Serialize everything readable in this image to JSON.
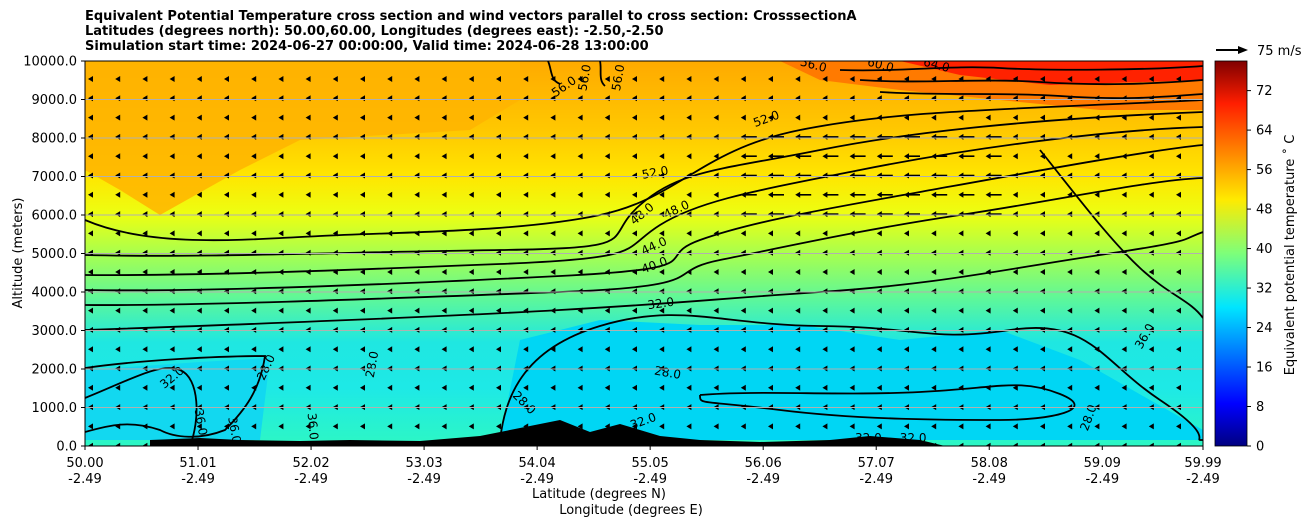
{
  "chart_data": {
    "type": "heatmap",
    "title_lines": [
      "Equivalent Potential Temperature cross section and wind vectors parallel to cross section: CrosssectionA",
      "Latitudes (degrees north): 50.00,60.00, Longitudes (degrees east): -2.50,-2.50",
      "Simulation start time: 2024-06-27 00:00:00, Valid time: 2024-06-28 13:00:00"
    ],
    "ylabel": "Altitude (meters)",
    "xlabel": "Latitude (degrees N)",
    "xlabel2": "Longitude (degrees E)",
    "ylim": [
      0,
      10000
    ],
    "xlim": [
      50.0,
      59.99
    ],
    "y_ticks": [
      "0.0",
      "1000.0",
      "2000.0",
      "3000.0",
      "4000.0",
      "5000.0",
      "6000.0",
      "7000.0",
      "8000.0",
      "9000.0",
      "10000.0"
    ],
    "x_ticks": [
      {
        "lat": "50.00",
        "lon": "-2.49"
      },
      {
        "lat": "51.01",
        "lon": "-2.49"
      },
      {
        "lat": "52.02",
        "lon": "-2.49"
      },
      {
        "lat": "53.03",
        "lon": "-2.49"
      },
      {
        "lat": "54.04",
        "lon": "-2.49"
      },
      {
        "lat": "55.05",
        "lon": "-2.49"
      },
      {
        "lat": "56.06",
        "lon": "-2.49"
      },
      {
        "lat": "57.07",
        "lon": "-2.49"
      },
      {
        "lat": "58.08",
        "lon": "-2.49"
      },
      {
        "lat": "59.09",
        "lon": "-2.49"
      },
      {
        "lat": "59.99",
        "lon": "-2.49"
      }
    ],
    "grid": "horizontal",
    "colorbar": {
      "label": "Equivalent potential temperature $^\\circ$C",
      "label_display": "Equivalent potential temperature ˚ C",
      "range": [
        0,
        78
      ],
      "ticks": [
        "0",
        "8",
        "16",
        "24",
        "32",
        "40",
        "48",
        "56",
        "64",
        "72"
      ],
      "colormap": "jet"
    },
    "quiver_key": "75 m/s",
    "contour_levels": [
      "28.0",
      "32.0",
      "36.0",
      "40.0",
      "44.0",
      "48.0",
      "52.0",
      "56.0",
      "60.0",
      "64.0"
    ],
    "contour_labels": [
      {
        "text": "56.0",
        "lat": 54.3,
        "alt": 9250,
        "rot": -35
      },
      {
        "text": "56.0",
        "lat": 54.5,
        "alt": 9550,
        "rot": -80
      },
      {
        "text": "56.0",
        "lat": 54.8,
        "alt": 9550,
        "rot": -80
      },
      {
        "text": "56.0",
        "lat": 56.5,
        "alt": 9800,
        "rot": 15
      },
      {
        "text": "60.0",
        "lat": 57.1,
        "alt": 9800,
        "rot": 15
      },
      {
        "text": "64.0",
        "lat": 57.6,
        "alt": 9800,
        "rot": 15
      },
      {
        "text": "52.0",
        "lat": 56.1,
        "alt": 8400,
        "rot": -20
      },
      {
        "text": "52.0",
        "lat": 55.1,
        "alt": 7000,
        "rot": -10
      },
      {
        "text": "48.0",
        "lat": 55.0,
        "alt": 5950,
        "rot": -40
      },
      {
        "text": "48.0",
        "lat": 55.3,
        "alt": 6050,
        "rot": -25
      },
      {
        "text": "44.0",
        "lat": 55.1,
        "alt": 5100,
        "rot": -25
      },
      {
        "text": "40.0",
        "lat": 55.1,
        "alt": 4600,
        "rot": -20
      },
      {
        "text": "32.0",
        "lat": 55.15,
        "alt": 3600,
        "rot": -8
      },
      {
        "text": "28.0",
        "lat": 55.2,
        "alt": 1800,
        "rot": 10
      },
      {
        "text": "36.0",
        "lat": 59.5,
        "alt": 2800,
        "rot": -60
      },
      {
        "text": "32.0",
        "lat": 50.8,
        "alt": 1700,
        "rot": -40
      },
      {
        "text": "36.0",
        "lat": 51.0,
        "alt": 600,
        "rot": 80
      },
      {
        "text": "36.0",
        "lat": 51.3,
        "alt": 400,
        "rot": 80
      },
      {
        "text": "36.0",
        "lat": 52.0,
        "alt": 500,
        "rot": 85
      },
      {
        "text": "28.0",
        "lat": 52.6,
        "alt": 2100,
        "rot": -80
      },
      {
        "text": "28.0",
        "lat": 51.65,
        "alt": 2000,
        "rot": -65
      },
      {
        "text": "28.0",
        "lat": 53.9,
        "alt": 1050,
        "rot": 45
      },
      {
        "text": "28.0",
        "lat": 59.0,
        "alt": 700,
        "rot": -70
      },
      {
        "text": "32.0",
        "lat": 55.0,
        "alt": 550,
        "rot": -20
      },
      {
        "text": "32.0",
        "lat": 57.0,
        "alt": 100,
        "rot": 0
      },
      {
        "text": "32.0",
        "lat": 57.4,
        "alt": 100,
        "rot": 0
      }
    ]
  }
}
